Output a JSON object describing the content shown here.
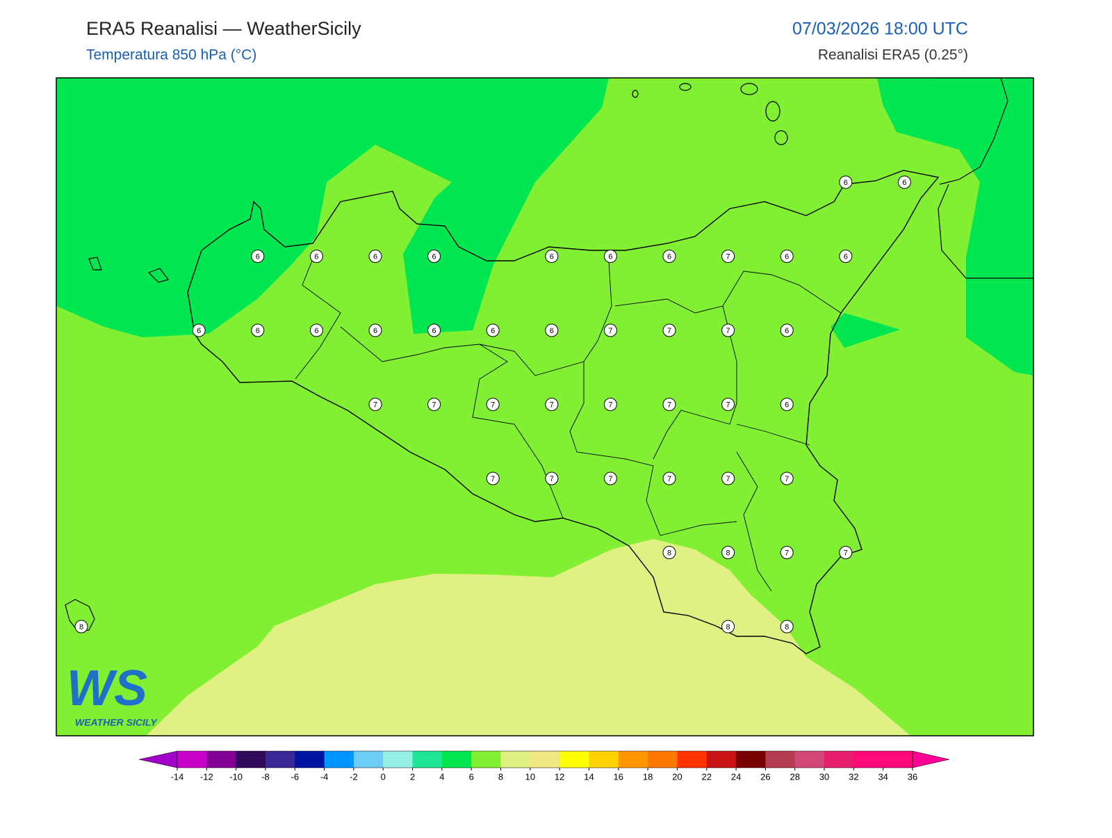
{
  "header": {
    "title": "ERA5 Reanalisi — WeatherSicily",
    "subtitle": "Temperatura 850 hPa (°C)",
    "datetime": "07/03/2026 18:00 UTC",
    "source": "Reanalisi ERA5 (0.25°)"
  },
  "map": {
    "station_grid": [
      [
        null,
        null,
        null,
        null,
        null,
        null,
        null,
        null,
        null,
        null,
        null,
        null,
        null,
        6,
        6
      ],
      [
        null,
        null,
        null,
        6,
        6,
        6,
        6,
        null,
        6,
        6,
        6,
        7,
        6,
        6,
        null
      ],
      [
        null,
        null,
        6,
        6,
        6,
        6,
        6,
        6,
        6,
        7,
        7,
        7,
        6,
        null,
        null
      ],
      [
        null,
        null,
        null,
        null,
        null,
        7,
        7,
        7,
        7,
        7,
        7,
        7,
        6,
        null,
        null
      ],
      [
        null,
        null,
        null,
        null,
        null,
        null,
        null,
        7,
        7,
        7,
        7,
        7,
        7,
        null,
        null
      ],
      [
        null,
        null,
        null,
        null,
        null,
        null,
        null,
        null,
        null,
        null,
        8,
        8,
        7,
        7,
        null
      ],
      [
        8,
        null,
        null,
        null,
        null,
        null,
        null,
        null,
        null,
        null,
        null,
        8,
        8,
        null,
        null
      ]
    ]
  },
  "colorbar": {
    "ticks": [
      -14,
      -12,
      -10,
      -8,
      -6,
      -4,
      -2,
      0,
      2,
      4,
      6,
      8,
      10,
      12,
      14,
      16,
      18,
      20,
      22,
      24,
      26,
      28,
      30,
      32,
      34,
      36
    ],
    "colors": [
      "#a000c8",
      "#c800c8",
      "#820096",
      "#320a5a",
      "#3c2896",
      "#0014a0",
      "#0096ff",
      "#6ecdf5",
      "#96f0e6",
      "#1ee696",
      "#00e650",
      "#82f032",
      "#e1f082",
      "#f0e682",
      "#ffff00",
      "#ffd200",
      "#ff9600",
      "#ff7800",
      "#ff3200",
      "#c81414",
      "#780000",
      "#b43c50",
      "#d24678",
      "#e61e6e",
      "#ff0a78",
      "#ff0a78",
      "#ff0096"
    ]
  },
  "logo": {
    "mark": "WS",
    "name": "WEATHER SICILY"
  }
}
